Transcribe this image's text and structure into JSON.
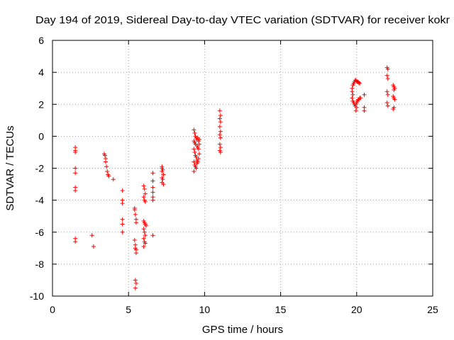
{
  "chart_data": {
    "type": "scatter",
    "title": "Day 194 of 2019, Sidereal Day-to-day VTEC variation (SDTVAR) for receiver kokr",
    "xlabel": "GPS time / hours",
    "ylabel": "SDTVAR / TECUs",
    "xlim": [
      0,
      25
    ],
    "ylim": [
      -10,
      6
    ],
    "xticks": [
      0,
      5,
      10,
      15,
      20,
      25
    ],
    "xtick_labels": [
      "0",
      "5",
      "10",
      "15",
      "20",
      "25"
    ],
    "yticks": [
      6,
      4,
      2,
      0,
      -2,
      -4,
      -6,
      -8,
      -10
    ],
    "ytick_labels": [
      "6",
      "4",
      "2",
      "0",
      "-2",
      "-4",
      "-6",
      "-8",
      "-10"
    ],
    "grid": true,
    "marker": "plus",
    "color": "#ff0000",
    "series": [
      {
        "name": "SDTVAR",
        "points": [
          [
            1.5,
            -0.7
          ],
          [
            1.5,
            -0.9
          ],
          [
            1.5,
            -1.0
          ],
          [
            1.5,
            -2.0
          ],
          [
            1.5,
            -2.3
          ],
          [
            1.5,
            -3.2
          ],
          [
            1.5,
            -3.4
          ],
          [
            1.5,
            -6.4
          ],
          [
            1.5,
            -6.6
          ],
          [
            2.6,
            -6.2
          ],
          [
            2.7,
            -6.9
          ],
          [
            3.4,
            -1.1
          ],
          [
            3.45,
            -1.2
          ],
          [
            3.5,
            -1.4
          ],
          [
            3.5,
            -1.6
          ],
          [
            3.55,
            -1.9
          ],
          [
            3.6,
            -2.2
          ],
          [
            3.65,
            -2.4
          ],
          [
            3.7,
            -2.5
          ],
          [
            4.0,
            -2.7
          ],
          [
            4.6,
            -3.4
          ],
          [
            4.6,
            -4.0
          ],
          [
            4.6,
            -4.2
          ],
          [
            4.6,
            -5.2
          ],
          [
            4.6,
            -5.5
          ],
          [
            4.6,
            -6.0
          ],
          [
            5.4,
            -4.5
          ],
          [
            5.4,
            -4.6
          ],
          [
            5.45,
            -4.9
          ],
          [
            5.5,
            -5.2
          ],
          [
            5.5,
            -5.4
          ],
          [
            5.4,
            -6.5
          ],
          [
            5.45,
            -6.8
          ],
          [
            5.45,
            -7.0
          ],
          [
            5.5,
            -7.1
          ],
          [
            5.5,
            -7.3
          ],
          [
            5.45,
            -9.0
          ],
          [
            5.5,
            -9.2
          ],
          [
            5.45,
            -9.5
          ],
          [
            6.0,
            -3.1
          ],
          [
            6.05,
            -3.3
          ],
          [
            6.1,
            -3.6
          ],
          [
            6.0,
            -3.8
          ],
          [
            6.05,
            -4.0
          ],
          [
            6.1,
            -4.1
          ],
          [
            6.0,
            -5.3
          ],
          [
            6.05,
            -5.4
          ],
          [
            6.1,
            -5.5
          ],
          [
            6.15,
            -5.6
          ],
          [
            6.0,
            -5.8
          ],
          [
            6.05,
            -6.0
          ],
          [
            6.1,
            -6.2
          ],
          [
            6.0,
            -6.4
          ],
          [
            6.05,
            -6.6
          ],
          [
            6.1,
            -6.7
          ],
          [
            6.0,
            -6.9
          ],
          [
            6.6,
            -2.3
          ],
          [
            6.6,
            -2.8
          ],
          [
            6.6,
            -3.2
          ],
          [
            6.6,
            -3.5
          ],
          [
            6.6,
            -3.8
          ],
          [
            6.6,
            -4.0
          ],
          [
            6.6,
            -6.2
          ],
          [
            7.2,
            -1.9
          ],
          [
            7.2,
            -2.0
          ],
          [
            7.25,
            -2.1
          ],
          [
            7.2,
            -2.2
          ],
          [
            7.3,
            -2.4
          ],
          [
            7.2,
            -2.6
          ],
          [
            7.25,
            -2.7
          ],
          [
            7.2,
            -2.9
          ],
          [
            7.3,
            -3.0
          ],
          [
            9.3,
            0.4
          ],
          [
            9.35,
            0.2
          ],
          [
            9.4,
            0.0
          ],
          [
            9.45,
            -0.1
          ],
          [
            9.5,
            -0.2
          ],
          [
            9.3,
            -0.3
          ],
          [
            9.35,
            -0.4
          ],
          [
            9.4,
            -0.5
          ],
          [
            9.5,
            -0.6
          ],
          [
            9.55,
            -0.7
          ],
          [
            9.3,
            -0.8
          ],
          [
            9.35,
            -1.0
          ],
          [
            9.4,
            -1.2
          ],
          [
            9.45,
            -1.3
          ],
          [
            9.5,
            -1.5
          ],
          [
            9.3,
            -1.6
          ],
          [
            9.35,
            -1.8
          ],
          [
            9.4,
            -1.9
          ],
          [
            9.45,
            -2.0
          ],
          [
            9.3,
            -2.2
          ],
          [
            9.5,
            -1.7
          ],
          [
            9.55,
            -1.6
          ],
          [
            9.6,
            -1.4
          ],
          [
            9.65,
            -1.1
          ],
          [
            9.6,
            -0.8
          ],
          [
            9.65,
            -0.5
          ],
          [
            9.6,
            -0.3
          ],
          [
            9.55,
            -0.1
          ],
          [
            9.65,
            -0.2
          ],
          [
            11.0,
            1.6
          ],
          [
            11.05,
            1.3
          ],
          [
            11.0,
            1.1
          ],
          [
            11.05,
            0.9
          ],
          [
            11.0,
            0.6
          ],
          [
            11.05,
            0.3
          ],
          [
            11.0,
            0.1
          ],
          [
            11.05,
            -0.1
          ],
          [
            11.0,
            -0.5
          ],
          [
            11.05,
            -0.7
          ],
          [
            11.0,
            -0.9
          ],
          [
            11.05,
            -1.0
          ],
          [
            19.7,
            3.0
          ],
          [
            19.75,
            3.2
          ],
          [
            19.8,
            3.3
          ],
          [
            19.85,
            3.4
          ],
          [
            19.9,
            3.5
          ],
          [
            19.95,
            3.5
          ],
          [
            20.0,
            3.45
          ],
          [
            20.05,
            3.4
          ],
          [
            20.1,
            3.4
          ],
          [
            20.15,
            3.35
          ],
          [
            20.2,
            3.3
          ],
          [
            19.7,
            2.8
          ],
          [
            19.75,
            2.6
          ],
          [
            19.7,
            2.4
          ],
          [
            19.75,
            2.2
          ],
          [
            19.8,
            2.1
          ],
          [
            19.85,
            2.0
          ],
          [
            19.9,
            1.9
          ],
          [
            19.95,
            2.0
          ],
          [
            20.0,
            2.1
          ],
          [
            20.05,
            2.2
          ],
          [
            20.1,
            2.3
          ],
          [
            20.15,
            2.3
          ],
          [
            20.2,
            2.4
          ],
          [
            20.25,
            2.4
          ],
          [
            19.95,
            1.6
          ],
          [
            20.0,
            1.8
          ],
          [
            20.5,
            2.6
          ],
          [
            20.5,
            1.8
          ],
          [
            20.5,
            1.6
          ],
          [
            22.0,
            4.3
          ],
          [
            22.05,
            4.2
          ],
          [
            22.0,
            3.8
          ],
          [
            22.05,
            3.6
          ],
          [
            22.0,
            2.8
          ],
          [
            22.05,
            2.6
          ],
          [
            22.0,
            2.1
          ],
          [
            22.05,
            1.9
          ],
          [
            22.4,
            3.2
          ],
          [
            22.45,
            3.1
          ],
          [
            22.5,
            3.0
          ],
          [
            22.45,
            2.9
          ],
          [
            22.4,
            2.5
          ],
          [
            22.45,
            2.4
          ],
          [
            22.5,
            2.3
          ],
          [
            22.45,
            1.8
          ],
          [
            22.4,
            1.7
          ]
        ]
      }
    ]
  }
}
